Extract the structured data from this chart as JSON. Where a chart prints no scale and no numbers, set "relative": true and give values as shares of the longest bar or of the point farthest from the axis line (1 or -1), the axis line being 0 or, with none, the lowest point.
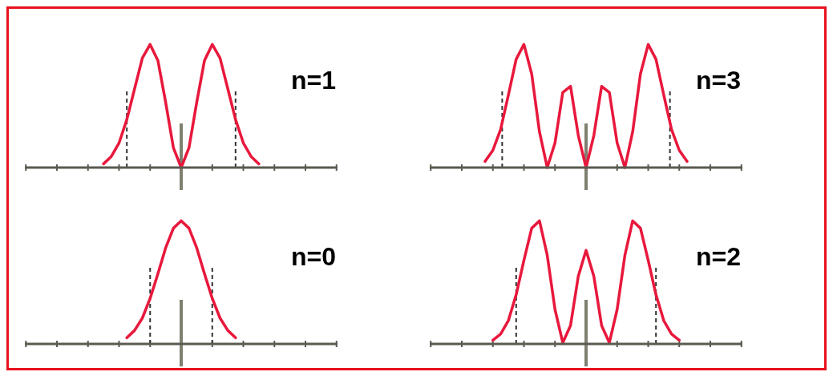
{
  "chart_data": [
    {
      "type": "line",
      "title": "n=1",
      "relative": true,
      "marker": "none",
      "line_style": "solid",
      "categories": [
        null,
        null,
        null,
        null,
        null,
        null,
        null,
        null,
        null,
        null,
        null,
        null,
        null,
        null,
        null,
        null,
        null,
        null,
        null,
        null,
        null,
        null,
        null,
        null,
        null,
        null,
        null,
        null,
        null,
        null,
        null,
        null,
        null
      ],
      "series": [
        {
          "color": "#e8183c",
          "values": [
            null,
            null,
            null,
            null,
            null,
            null,
            0.03,
            0.09,
            0.2,
            0.39,
            0.64,
            0.89,
            1,
            0.87,
            0.53,
            0.16,
            0,
            0.16,
            0.53,
            0.87,
            1,
            0.89,
            0.64,
            0.39,
            0.2,
            0.09,
            0.03,
            null,
            null,
            null,
            null,
            null,
            null
          ]
        }
      ]
    },
    {
      "type": "line",
      "title": "n=3",
      "relative": true,
      "marker": "none",
      "line_style": "solid",
      "categories": [
        null,
        null,
        null,
        null,
        null,
        null,
        null,
        null,
        null,
        null,
        null,
        null,
        null,
        null,
        null,
        null,
        null,
        null,
        null,
        null,
        null,
        null,
        null,
        null,
        null,
        null,
        null,
        null,
        null,
        null,
        null,
        null,
        null
      ],
      "series": [
        {
          "color": "#e8183c",
          "values": [
            null,
            null,
            null,
            0.05,
            0.14,
            0.31,
            0.59,
            0.88,
            1,
            0.76,
            0.29,
            0,
            0.2,
            0.61,
            0.66,
            0.26,
            0,
            0.26,
            0.66,
            0.61,
            0.2,
            0,
            0.29,
            0.76,
            1,
            0.88,
            0.59,
            0.31,
            0.14,
            0.05,
            null,
            null,
            null
          ]
        }
      ]
    },
    {
      "type": "line",
      "title": "n=0",
      "relative": true,
      "marker": "none",
      "line_style": "solid",
      "categories": [
        null,
        null,
        null,
        null,
        null,
        null,
        null,
        null,
        null,
        null,
        null,
        null,
        null,
        null,
        null,
        null,
        null,
        null,
        null,
        null,
        null,
        null,
        null,
        null,
        null,
        null,
        null,
        null,
        null,
        null,
        null,
        null,
        null
      ],
      "series": [
        {
          "color": "#e8183c",
          "values": [
            null,
            null,
            null,
            null,
            null,
            null,
            null,
            null,
            null,
            0.05,
            0.11,
            0.21,
            0.37,
            0.57,
            0.78,
            0.94,
            1,
            0.94,
            0.78,
            0.57,
            0.37,
            0.21,
            0.11,
            0.05,
            null,
            null,
            null,
            null,
            null,
            null,
            null,
            null,
            null
          ]
        }
      ]
    },
    {
      "type": "line",
      "title": "n=2",
      "relative": true,
      "marker": "none",
      "line_style": "solid",
      "categories": [
        null,
        null,
        null,
        null,
        null,
        null,
        null,
        null,
        null,
        null,
        null,
        null,
        null,
        null,
        null,
        null,
        null,
        null,
        null,
        null,
        null,
        null,
        null,
        null,
        null,
        null,
        null,
        null,
        null,
        null,
        null,
        null,
        null
      ],
      "series": [
        {
          "color": "#e8183c",
          "values": [
            null,
            null,
            null,
            null,
            0.03,
            0.08,
            0.19,
            0.4,
            0.68,
            0.94,
            1,
            0.72,
            0.28,
            0.01,
            0.15,
            0.55,
            0.76,
            0.55,
            0.15,
            0.01,
            0.28,
            0.72,
            1,
            0.94,
            0.68,
            0.4,
            0.19,
            0.08,
            0.03,
            null,
            null,
            null,
            null
          ]
        }
      ]
    }
  ]
}
